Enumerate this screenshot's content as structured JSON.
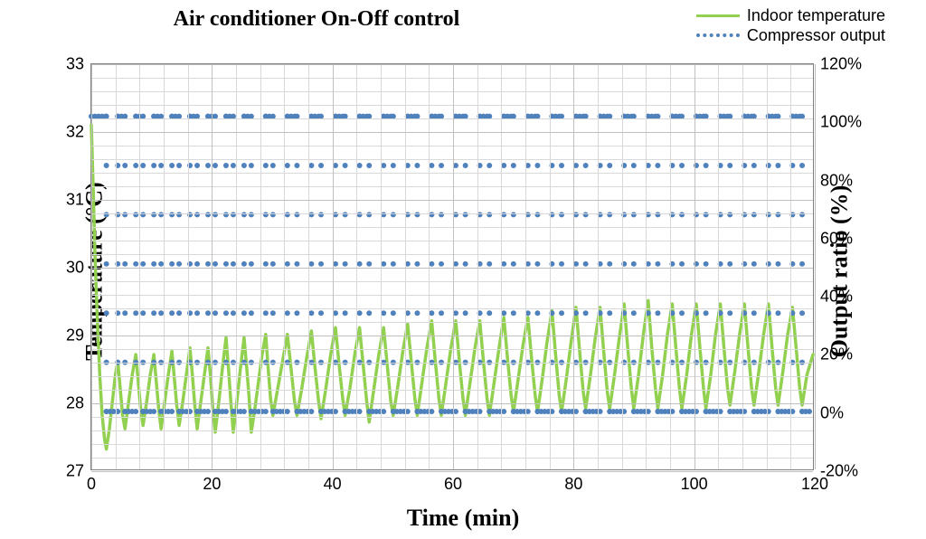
{
  "chart": {
    "type": "line-dual-axis",
    "title": "Air conditioner On-Off control",
    "title_fontsize": 24,
    "title_fontweight": "bold",
    "background_color": "#ffffff",
    "plot_background_color": "#ffffff",
    "grid_color": "#bfbfbf",
    "minor_grid_color": "#d9d9d9",
    "border_color": "#808080",
    "x_axis": {
      "label": "Time (min)",
      "label_fontsize": 26,
      "lim": [
        0,
        120
      ],
      "tick_step": 20,
      "ticks": [
        0,
        20,
        40,
        60,
        80,
        100,
        120
      ],
      "tick_fontsize": 18,
      "minor_step": 4
    },
    "y1_axis": {
      "label": "Temperature (°C)",
      "label_fontsize": 26,
      "lim": [
        27,
        33
      ],
      "tick_step": 1,
      "ticks": [
        27,
        28,
        29,
        30,
        31,
        32,
        33
      ],
      "tick_fontsize": 18,
      "minor_step": 0.2
    },
    "y2_axis": {
      "label": "Output ratio  (%)",
      "label_fontsize": 26,
      "lim": [
        -20,
        120
      ],
      "tick_step": 20,
      "ticks": [
        -20,
        0,
        20,
        40,
        60,
        80,
        100,
        120
      ],
      "tick_labels": [
        "-20%",
        "0%",
        "20%",
        "40%",
        "60%",
        "80%",
        "100%",
        "120%"
      ],
      "tick_fontsize": 18
    },
    "legend": {
      "position": "top-right",
      "fontsize": 18,
      "items": [
        {
          "label": "Indoor temperature",
          "color": "#92d050",
          "style": "solid",
          "width": 3
        },
        {
          "label": "Compressor output",
          "color": "#4f81bd",
          "style": "dotted",
          "width": 3
        }
      ]
    },
    "series": [
      {
        "name": "Indoor temperature",
        "axis": "y1",
        "color": "#92d050",
        "line_width": 3.5,
        "line_style": "solid",
        "data": [
          [
            0,
            32.1
          ],
          [
            0.3,
            31.2
          ],
          [
            0.6,
            30.2
          ],
          [
            1,
            29.2
          ],
          [
            1.4,
            28.4
          ],
          [
            1.8,
            27.8
          ],
          [
            2.2,
            27.45
          ],
          [
            2.5,
            27.3
          ],
          [
            3,
            27.6
          ],
          [
            3.5,
            28.0
          ],
          [
            4,
            28.4
          ],
          [
            4.4,
            28.6
          ],
          [
            4.8,
            28.2
          ],
          [
            5.2,
            27.8
          ],
          [
            5.6,
            27.6
          ],
          [
            6.2,
            28.0
          ],
          [
            6.8,
            28.4
          ],
          [
            7.4,
            28.7
          ],
          [
            7.8,
            28.3
          ],
          [
            8.2,
            27.9
          ],
          [
            8.6,
            27.65
          ],
          [
            9.2,
            28.0
          ],
          [
            9.8,
            28.4
          ],
          [
            10.4,
            28.7
          ],
          [
            10.8,
            28.3
          ],
          [
            11.2,
            27.9
          ],
          [
            11.6,
            27.6
          ],
          [
            12.2,
            28.0
          ],
          [
            12.8,
            28.4
          ],
          [
            13.4,
            28.75
          ],
          [
            13.8,
            28.35
          ],
          [
            14.2,
            27.95
          ],
          [
            14.6,
            27.65
          ],
          [
            15.2,
            28.0
          ],
          [
            15.8,
            28.4
          ],
          [
            16.4,
            28.8
          ],
          [
            16.8,
            28.4
          ],
          [
            17.2,
            27.95
          ],
          [
            17.6,
            27.6
          ],
          [
            18.2,
            28.0
          ],
          [
            18.8,
            28.4
          ],
          [
            19.4,
            28.8
          ],
          [
            19.8,
            28.4
          ],
          [
            20.2,
            27.9
          ],
          [
            20.6,
            27.55
          ],
          [
            21.2,
            28.0
          ],
          [
            21.8,
            28.5
          ],
          [
            22.4,
            28.95
          ],
          [
            22.8,
            28.5
          ],
          [
            23.2,
            28.0
          ],
          [
            23.6,
            27.55
          ],
          [
            24.2,
            28.0
          ],
          [
            24.8,
            28.5
          ],
          [
            25.4,
            28.95
          ],
          [
            25.8,
            28.55
          ],
          [
            26.2,
            28.1
          ],
          [
            26.6,
            27.55
          ],
          [
            27.2,
            27.9
          ],
          [
            27.8,
            28.3
          ],
          [
            28.4,
            28.7
          ],
          [
            29,
            29.0
          ],
          [
            29.4,
            28.5
          ],
          [
            29.8,
            28.05
          ],
          [
            30.2,
            27.8
          ],
          [
            31,
            28.2
          ],
          [
            31.8,
            28.6
          ],
          [
            32.6,
            29.0
          ],
          [
            33.2,
            28.5
          ],
          [
            33.8,
            28.0
          ],
          [
            34.2,
            27.8
          ],
          [
            35,
            28.2
          ],
          [
            35.8,
            28.65
          ],
          [
            36.6,
            29.05
          ],
          [
            37.2,
            28.5
          ],
          [
            37.8,
            28.0
          ],
          [
            38.2,
            27.75
          ],
          [
            39,
            28.2
          ],
          [
            39.8,
            28.7
          ],
          [
            40.6,
            29.1
          ],
          [
            41.2,
            28.55
          ],
          [
            41.8,
            28.05
          ],
          [
            42.2,
            27.8
          ],
          [
            43,
            28.2
          ],
          [
            43.8,
            28.7
          ],
          [
            44.6,
            29.1
          ],
          [
            45.2,
            28.55
          ],
          [
            45.8,
            28.0
          ],
          [
            46.2,
            27.7
          ],
          [
            47,
            28.2
          ],
          [
            47.8,
            28.7
          ],
          [
            48.6,
            29.1
          ],
          [
            49.2,
            28.55
          ],
          [
            49.8,
            28.0
          ],
          [
            50.2,
            27.8
          ],
          [
            51,
            28.25
          ],
          [
            51.8,
            28.75
          ],
          [
            52.6,
            29.15
          ],
          [
            53.2,
            28.6
          ],
          [
            53.8,
            28.05
          ],
          [
            54.2,
            27.8
          ],
          [
            55,
            28.3
          ],
          [
            55.8,
            28.8
          ],
          [
            56.6,
            29.2
          ],
          [
            57.2,
            28.6
          ],
          [
            57.8,
            28.05
          ],
          [
            58.2,
            27.8
          ],
          [
            59,
            28.3
          ],
          [
            59.8,
            28.8
          ],
          [
            60.6,
            29.2
          ],
          [
            61.2,
            28.6
          ],
          [
            61.8,
            28.05
          ],
          [
            62.2,
            27.8
          ],
          [
            63,
            28.3
          ],
          [
            63.8,
            28.8
          ],
          [
            64.6,
            29.2
          ],
          [
            65.2,
            28.6
          ],
          [
            65.8,
            28.05
          ],
          [
            66.2,
            27.8
          ],
          [
            67,
            28.3
          ],
          [
            67.8,
            28.8
          ],
          [
            68.6,
            29.25
          ],
          [
            69.2,
            28.65
          ],
          [
            69.8,
            28.1
          ],
          [
            70.2,
            27.85
          ],
          [
            71,
            28.35
          ],
          [
            71.8,
            28.85
          ],
          [
            72.6,
            29.25
          ],
          [
            73.2,
            28.65
          ],
          [
            73.8,
            28.1
          ],
          [
            74.2,
            27.85
          ],
          [
            75,
            28.35
          ],
          [
            75.8,
            28.9
          ],
          [
            76.6,
            29.35
          ],
          [
            77.2,
            28.7
          ],
          [
            77.8,
            28.1
          ],
          [
            78.2,
            27.85
          ],
          [
            79,
            28.35
          ],
          [
            79.8,
            28.9
          ],
          [
            80.6,
            29.4
          ],
          [
            81.2,
            28.75
          ],
          [
            81.8,
            28.15
          ],
          [
            82.2,
            27.9
          ],
          [
            83,
            28.4
          ],
          [
            83.8,
            28.95
          ],
          [
            84.6,
            29.4
          ],
          [
            85.2,
            28.75
          ],
          [
            85.8,
            28.15
          ],
          [
            86.2,
            27.9
          ],
          [
            87,
            28.4
          ],
          [
            87.8,
            28.95
          ],
          [
            88.6,
            29.45
          ],
          [
            89.2,
            28.8
          ],
          [
            89.8,
            28.2
          ],
          [
            90.2,
            27.9
          ],
          [
            91,
            28.4
          ],
          [
            91.8,
            29.0
          ],
          [
            92.6,
            29.5
          ],
          [
            93.2,
            28.8
          ],
          [
            93.8,
            28.2
          ],
          [
            94.2,
            27.9
          ],
          [
            95,
            28.4
          ],
          [
            95.8,
            29.0
          ],
          [
            96.6,
            29.45
          ],
          [
            97.2,
            28.8
          ],
          [
            97.8,
            28.2
          ],
          [
            98.2,
            27.9
          ],
          [
            99,
            28.4
          ],
          [
            99.8,
            29.0
          ],
          [
            100.6,
            29.45
          ],
          [
            101.2,
            28.8
          ],
          [
            101.8,
            28.2
          ],
          [
            102.2,
            27.9
          ],
          [
            103,
            28.4
          ],
          [
            103.8,
            29.0
          ],
          [
            104.6,
            29.45
          ],
          [
            105.2,
            28.8
          ],
          [
            105.8,
            28.2
          ],
          [
            106.2,
            27.95
          ],
          [
            107,
            28.45
          ],
          [
            107.8,
            29.0
          ],
          [
            108.6,
            29.45
          ],
          [
            109.2,
            28.8
          ],
          [
            109.8,
            28.2
          ],
          [
            110.2,
            27.95
          ],
          [
            111,
            28.45
          ],
          [
            111.8,
            29.0
          ],
          [
            112.6,
            29.45
          ],
          [
            113.2,
            28.8
          ],
          [
            113.8,
            28.2
          ],
          [
            114.2,
            27.95
          ],
          [
            115,
            28.45
          ],
          [
            115.8,
            29.0
          ],
          [
            116.6,
            29.4
          ],
          [
            117.2,
            28.8
          ],
          [
            117.8,
            28.2
          ],
          [
            118.2,
            27.95
          ],
          [
            119,
            28.4
          ],
          [
            120,
            28.7
          ]
        ]
      },
      {
        "name": "Compressor output",
        "axis": "y2",
        "color": "#4f81bd",
        "line_width": 3,
        "line_style": "dotted",
        "marker": "dot",
        "marker_size": 3,
        "cycles": [
          [
            0,
            2.5,
            4.4
          ],
          [
            4.4,
            5.6,
            7.4
          ],
          [
            7.4,
            8.6,
            10.4
          ],
          [
            10.4,
            11.6,
            13.4
          ],
          [
            13.4,
            14.6,
            16.4
          ],
          [
            16.4,
            17.6,
            19.4
          ],
          [
            19.4,
            20.6,
            22.4
          ],
          [
            22.4,
            23.6,
            25.4
          ],
          [
            25.4,
            26.6,
            29.0
          ],
          [
            29.0,
            30.2,
            32.6
          ],
          [
            32.6,
            34.2,
            36.6
          ],
          [
            36.6,
            38.2,
            40.6
          ],
          [
            40.6,
            42.2,
            44.6
          ],
          [
            44.6,
            46.2,
            48.6
          ],
          [
            48.6,
            50.2,
            52.6
          ],
          [
            52.6,
            54.2,
            56.6
          ],
          [
            56.6,
            58.2,
            60.6
          ],
          [
            60.6,
            62.2,
            64.6
          ],
          [
            64.6,
            66.2,
            68.6
          ],
          [
            68.6,
            70.2,
            72.6
          ],
          [
            72.6,
            74.2,
            76.6
          ],
          [
            76.6,
            78.2,
            80.6
          ],
          [
            80.6,
            82.2,
            84.6
          ],
          [
            84.6,
            86.2,
            88.6
          ],
          [
            88.6,
            90.2,
            92.6
          ],
          [
            92.6,
            94.2,
            96.6
          ],
          [
            96.6,
            98.2,
            100.6
          ],
          [
            100.6,
            102.2,
            104.6
          ],
          [
            104.6,
            106.2,
            108.6
          ],
          [
            108.6,
            110.2,
            112.6
          ],
          [
            112.6,
            114.2,
            116.6
          ],
          [
            116.6,
            118.2,
            120
          ]
        ],
        "on_value": 102,
        "off_value": 0,
        "sample_step": 0.6
      }
    ]
  }
}
